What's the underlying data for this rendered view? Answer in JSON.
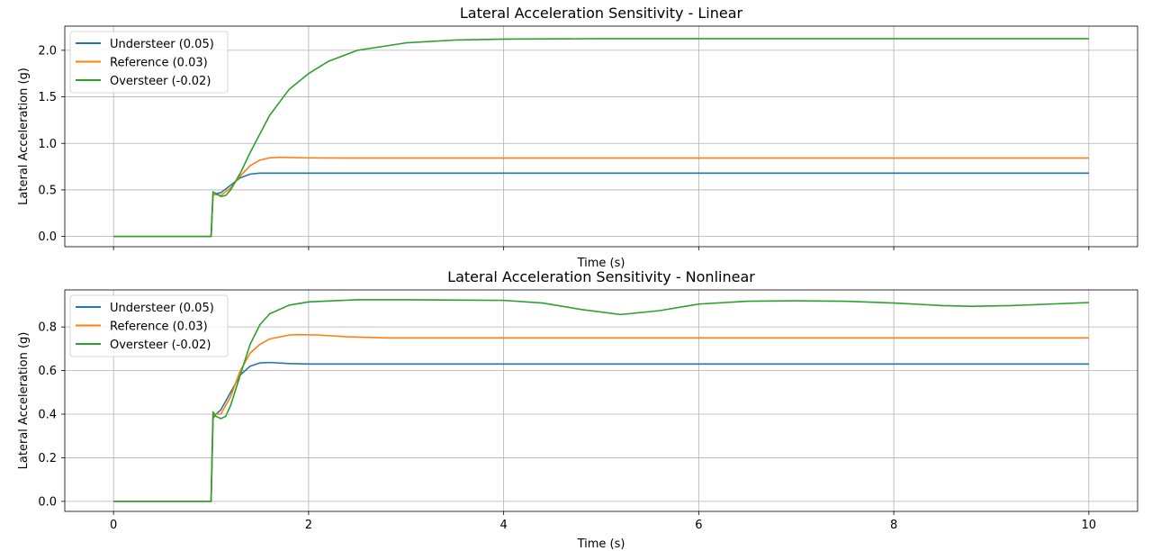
{
  "chart_data": [
    {
      "type": "line",
      "title": "Lateral Acceleration Sensitivity - Linear",
      "xlabel": "Time (s)",
      "ylabel": "Lateral Acceleration (g)",
      "xlim": [
        -0.5,
        10.5
      ],
      "ylim": [
        -0.11,
        2.26
      ],
      "xticks": [
        0,
        2,
        4,
        6,
        8,
        10
      ],
      "xtick_labels_visible": false,
      "yticks": [
        0.0,
        0.5,
        1.0,
        1.5,
        2.0
      ],
      "ytick_labels": [
        "0.0",
        "0.5",
        "1.0",
        "1.5",
        "2.0"
      ],
      "grid": true,
      "legend_position": "top-left",
      "series": [
        {
          "name": "Understeer (0.05)",
          "color": "#1f77b4",
          "x": [
            0,
            1.0,
            1.02,
            1.05,
            1.1,
            1.2,
            1.3,
            1.4,
            1.5,
            1.7,
            2,
            10
          ],
          "y": [
            0,
            0,
            0.44,
            0.46,
            0.47,
            0.55,
            0.63,
            0.67,
            0.68,
            0.68,
            0.68,
            0.68
          ]
        },
        {
          "name": "Reference (0.03)",
          "color": "#ff7f0e",
          "x": [
            0,
            1.0,
            1.02,
            1.05,
            1.1,
            1.2,
            1.3,
            1.4,
            1.5,
            1.6,
            1.7,
            1.8,
            2.0,
            2.5,
            10
          ],
          "y": [
            0,
            0,
            0.45,
            0.45,
            0.44,
            0.52,
            0.65,
            0.76,
            0.82,
            0.845,
            0.85,
            0.848,
            0.844,
            0.842,
            0.842
          ]
        },
        {
          "name": "Oversteer (-0.02)",
          "color": "#2ca02c",
          "x": [
            0,
            1.0,
            1.02,
            1.05,
            1.1,
            1.15,
            1.2,
            1.3,
            1.4,
            1.5,
            1.6,
            1.8,
            2.0,
            2.2,
            2.5,
            3.0,
            3.5,
            4.0,
            5.0,
            10
          ],
          "y": [
            0,
            0,
            0.48,
            0.46,
            0.43,
            0.44,
            0.5,
            0.68,
            0.9,
            1.1,
            1.3,
            1.58,
            1.75,
            1.88,
            2.0,
            2.08,
            2.11,
            2.12,
            2.125,
            2.125
          ]
        }
      ]
    },
    {
      "type": "line",
      "title": "Lateral Acceleration Sensitivity - Nonlinear",
      "xlabel": "Time (s)",
      "ylabel": "Lateral Acceleration (g)",
      "xlim": [
        -0.5,
        10.5
      ],
      "ylim": [
        -0.046,
        0.97
      ],
      "xticks": [
        0,
        2,
        4,
        6,
        8,
        10
      ],
      "xtick_labels": [
        "0",
        "2",
        "4",
        "6",
        "8",
        "10"
      ],
      "yticks": [
        0.0,
        0.2,
        0.4,
        0.6,
        0.8
      ],
      "ytick_labels": [
        "0.0",
        "0.2",
        "0.4",
        "0.6",
        "0.8"
      ],
      "grid": true,
      "legend_position": "top-left",
      "series": [
        {
          "name": "Understeer (0.05)",
          "color": "#1f77b4",
          "x": [
            0,
            1.0,
            1.02,
            1.05,
            1.1,
            1.2,
            1.3,
            1.4,
            1.5,
            1.6,
            1.8,
            2.0,
            10
          ],
          "y": [
            0,
            0,
            0.38,
            0.4,
            0.42,
            0.5,
            0.58,
            0.62,
            0.635,
            0.637,
            0.632,
            0.63,
            0.63
          ]
        },
        {
          "name": "Reference (0.03)",
          "color": "#ff7f0e",
          "x": [
            0,
            1.0,
            1.02,
            1.05,
            1.1,
            1.2,
            1.3,
            1.4,
            1.5,
            1.6,
            1.8,
            1.9,
            2.1,
            2.4,
            2.8,
            10
          ],
          "y": [
            0,
            0,
            0.39,
            0.4,
            0.4,
            0.48,
            0.6,
            0.68,
            0.72,
            0.745,
            0.763,
            0.765,
            0.763,
            0.755,
            0.75,
            0.75
          ]
        },
        {
          "name": "Oversteer (-0.02)",
          "color": "#2ca02c",
          "x": [
            0,
            1.0,
            1.02,
            1.05,
            1.1,
            1.15,
            1.2,
            1.3,
            1.4,
            1.5,
            1.6,
            1.8,
            2.0,
            2.5,
            3.0,
            4.0,
            4.4,
            4.8,
            5.2,
            5.6,
            6.0,
            6.5,
            7.0,
            7.5,
            8.0,
            8.5,
            8.8,
            9.2,
            9.6,
            10
          ],
          "y": [
            0,
            0,
            0.41,
            0.39,
            0.38,
            0.39,
            0.44,
            0.58,
            0.72,
            0.81,
            0.86,
            0.9,
            0.915,
            0.925,
            0.925,
            0.922,
            0.91,
            0.88,
            0.857,
            0.875,
            0.905,
            0.918,
            0.92,
            0.918,
            0.91,
            0.898,
            0.895,
            0.898,
            0.905,
            0.912
          ]
        }
      ]
    }
  ]
}
